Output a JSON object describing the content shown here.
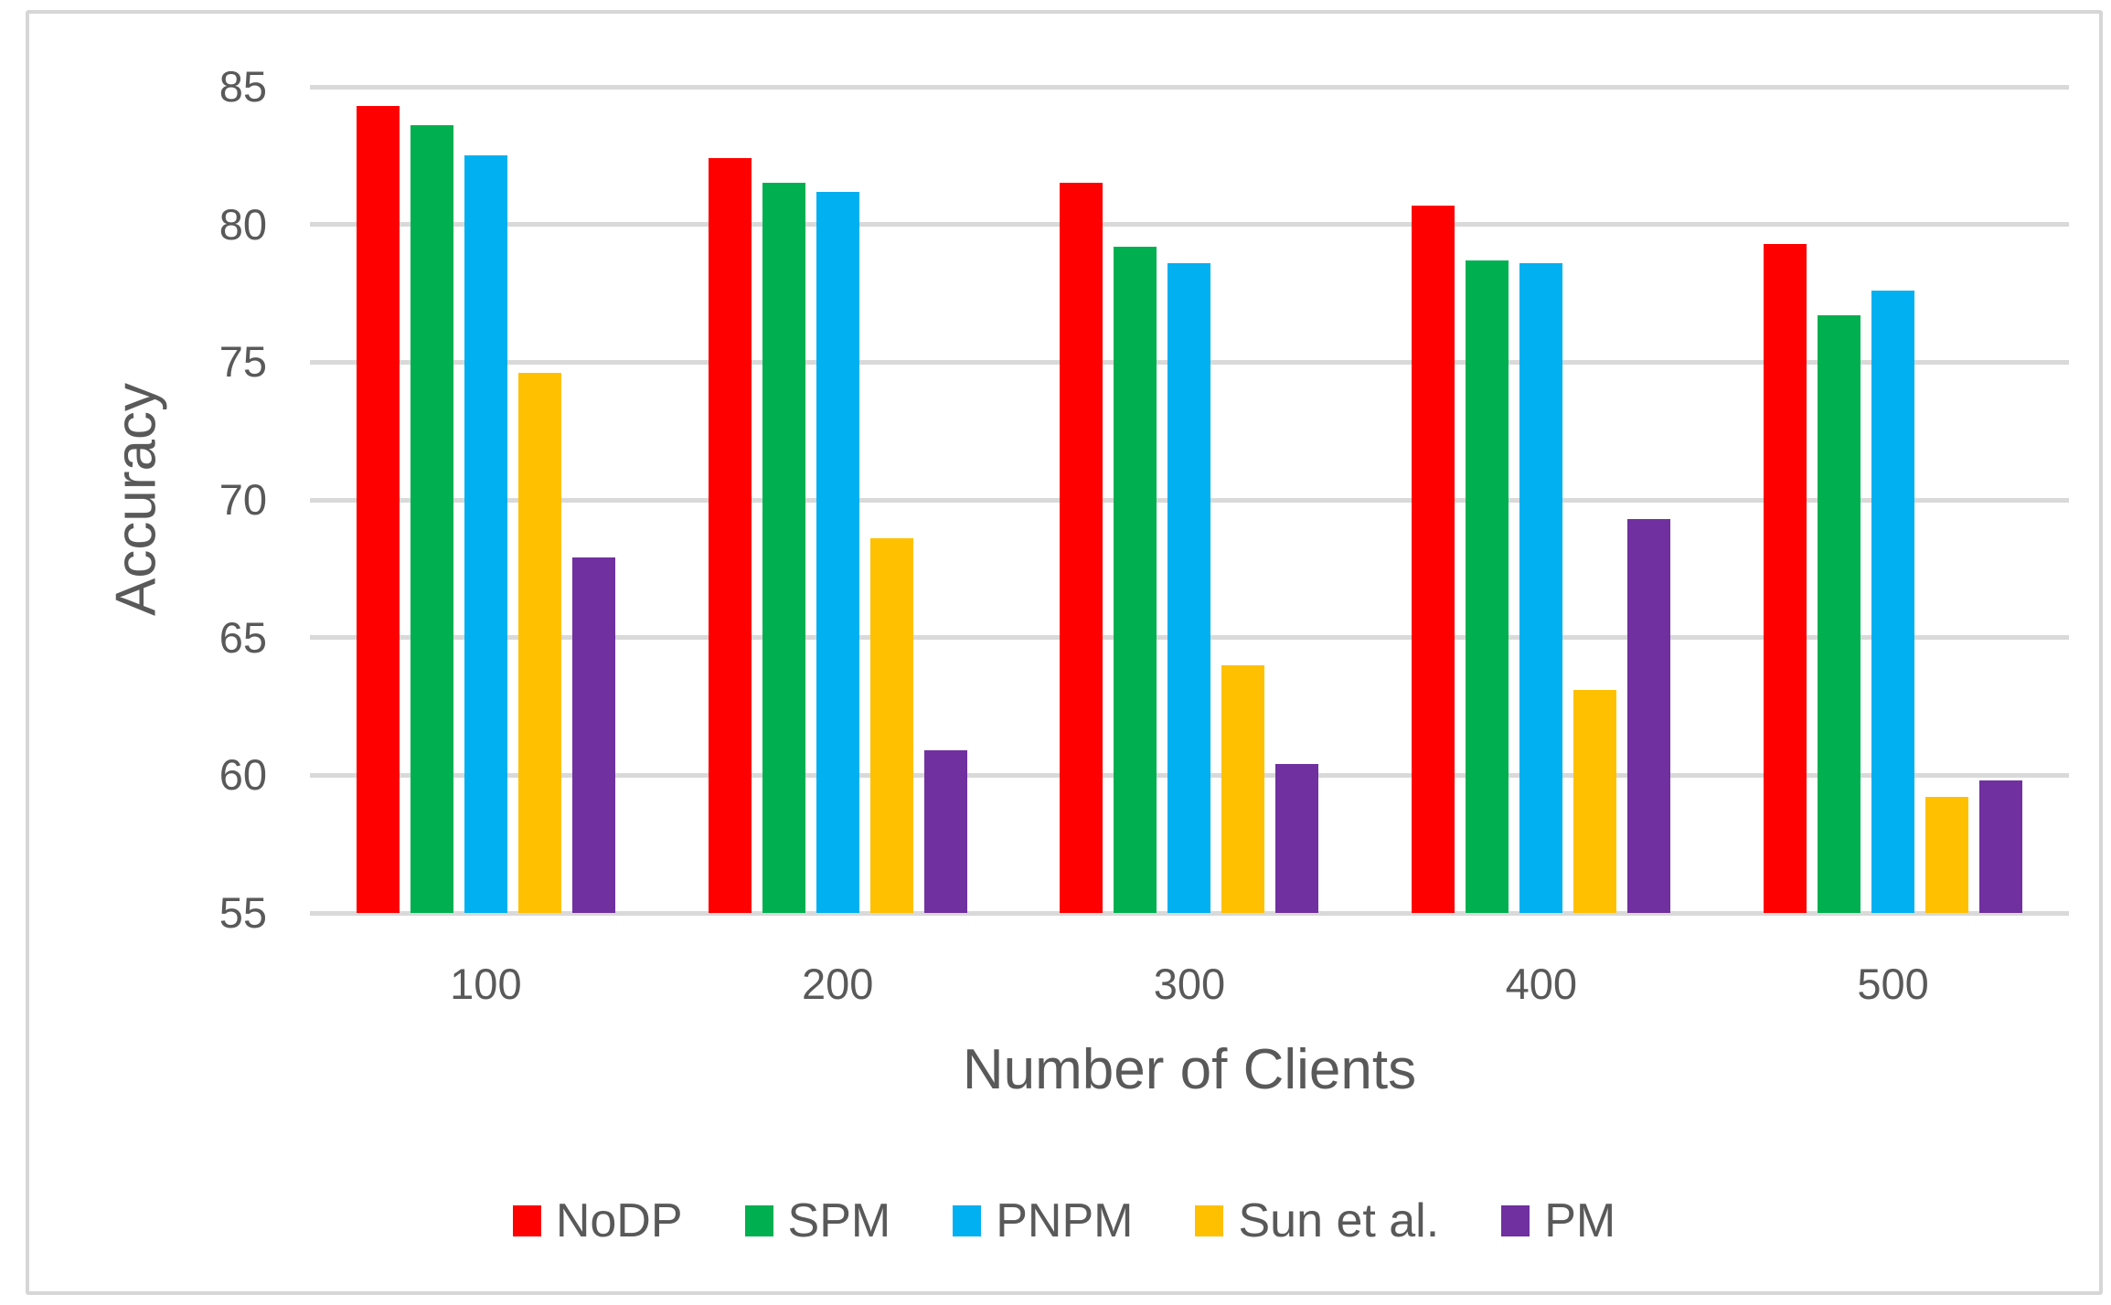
{
  "chart_data": {
    "type": "bar",
    "title": "",
    "categories": [
      "100",
      "200",
      "300",
      "400",
      "500"
    ],
    "series": [
      {
        "name": "NoDP",
        "color": "#FF0000",
        "values": [
          84.3,
          82.4,
          81.5,
          80.7,
          79.3
        ]
      },
      {
        "name": "SPM",
        "color": "#00B050",
        "values": [
          83.6,
          81.5,
          79.2,
          78.7,
          76.7
        ]
      },
      {
        "name": "PNPM",
        "color": "#00B0F0",
        "values": [
          82.5,
          81.2,
          78.6,
          78.6,
          77.6
        ]
      },
      {
        "name": "Sun et al.",
        "color": "#FFC000",
        "values": [
          74.6,
          68.6,
          64.0,
          63.1,
          59.2
        ]
      },
      {
        "name": "PM",
        "color": "#7030A0",
        "values": [
          67.9,
          60.9,
          60.4,
          69.3,
          59.8
        ]
      }
    ],
    "xlabel": "Number of Clients",
    "ylabel": "Accuracy",
    "ylim": [
      55,
      85
    ],
    "ytick_step": 5,
    "yticks": [
      "55",
      "60",
      "65",
      "70",
      "75",
      "80",
      "85"
    ],
    "grid": true,
    "legend_position": "bottom"
  },
  "colors": {
    "axis_text": "#595959",
    "gridline": "#D9D9D9",
    "frame_border": "#D6D6D6",
    "background": "#FFFFFF"
  }
}
